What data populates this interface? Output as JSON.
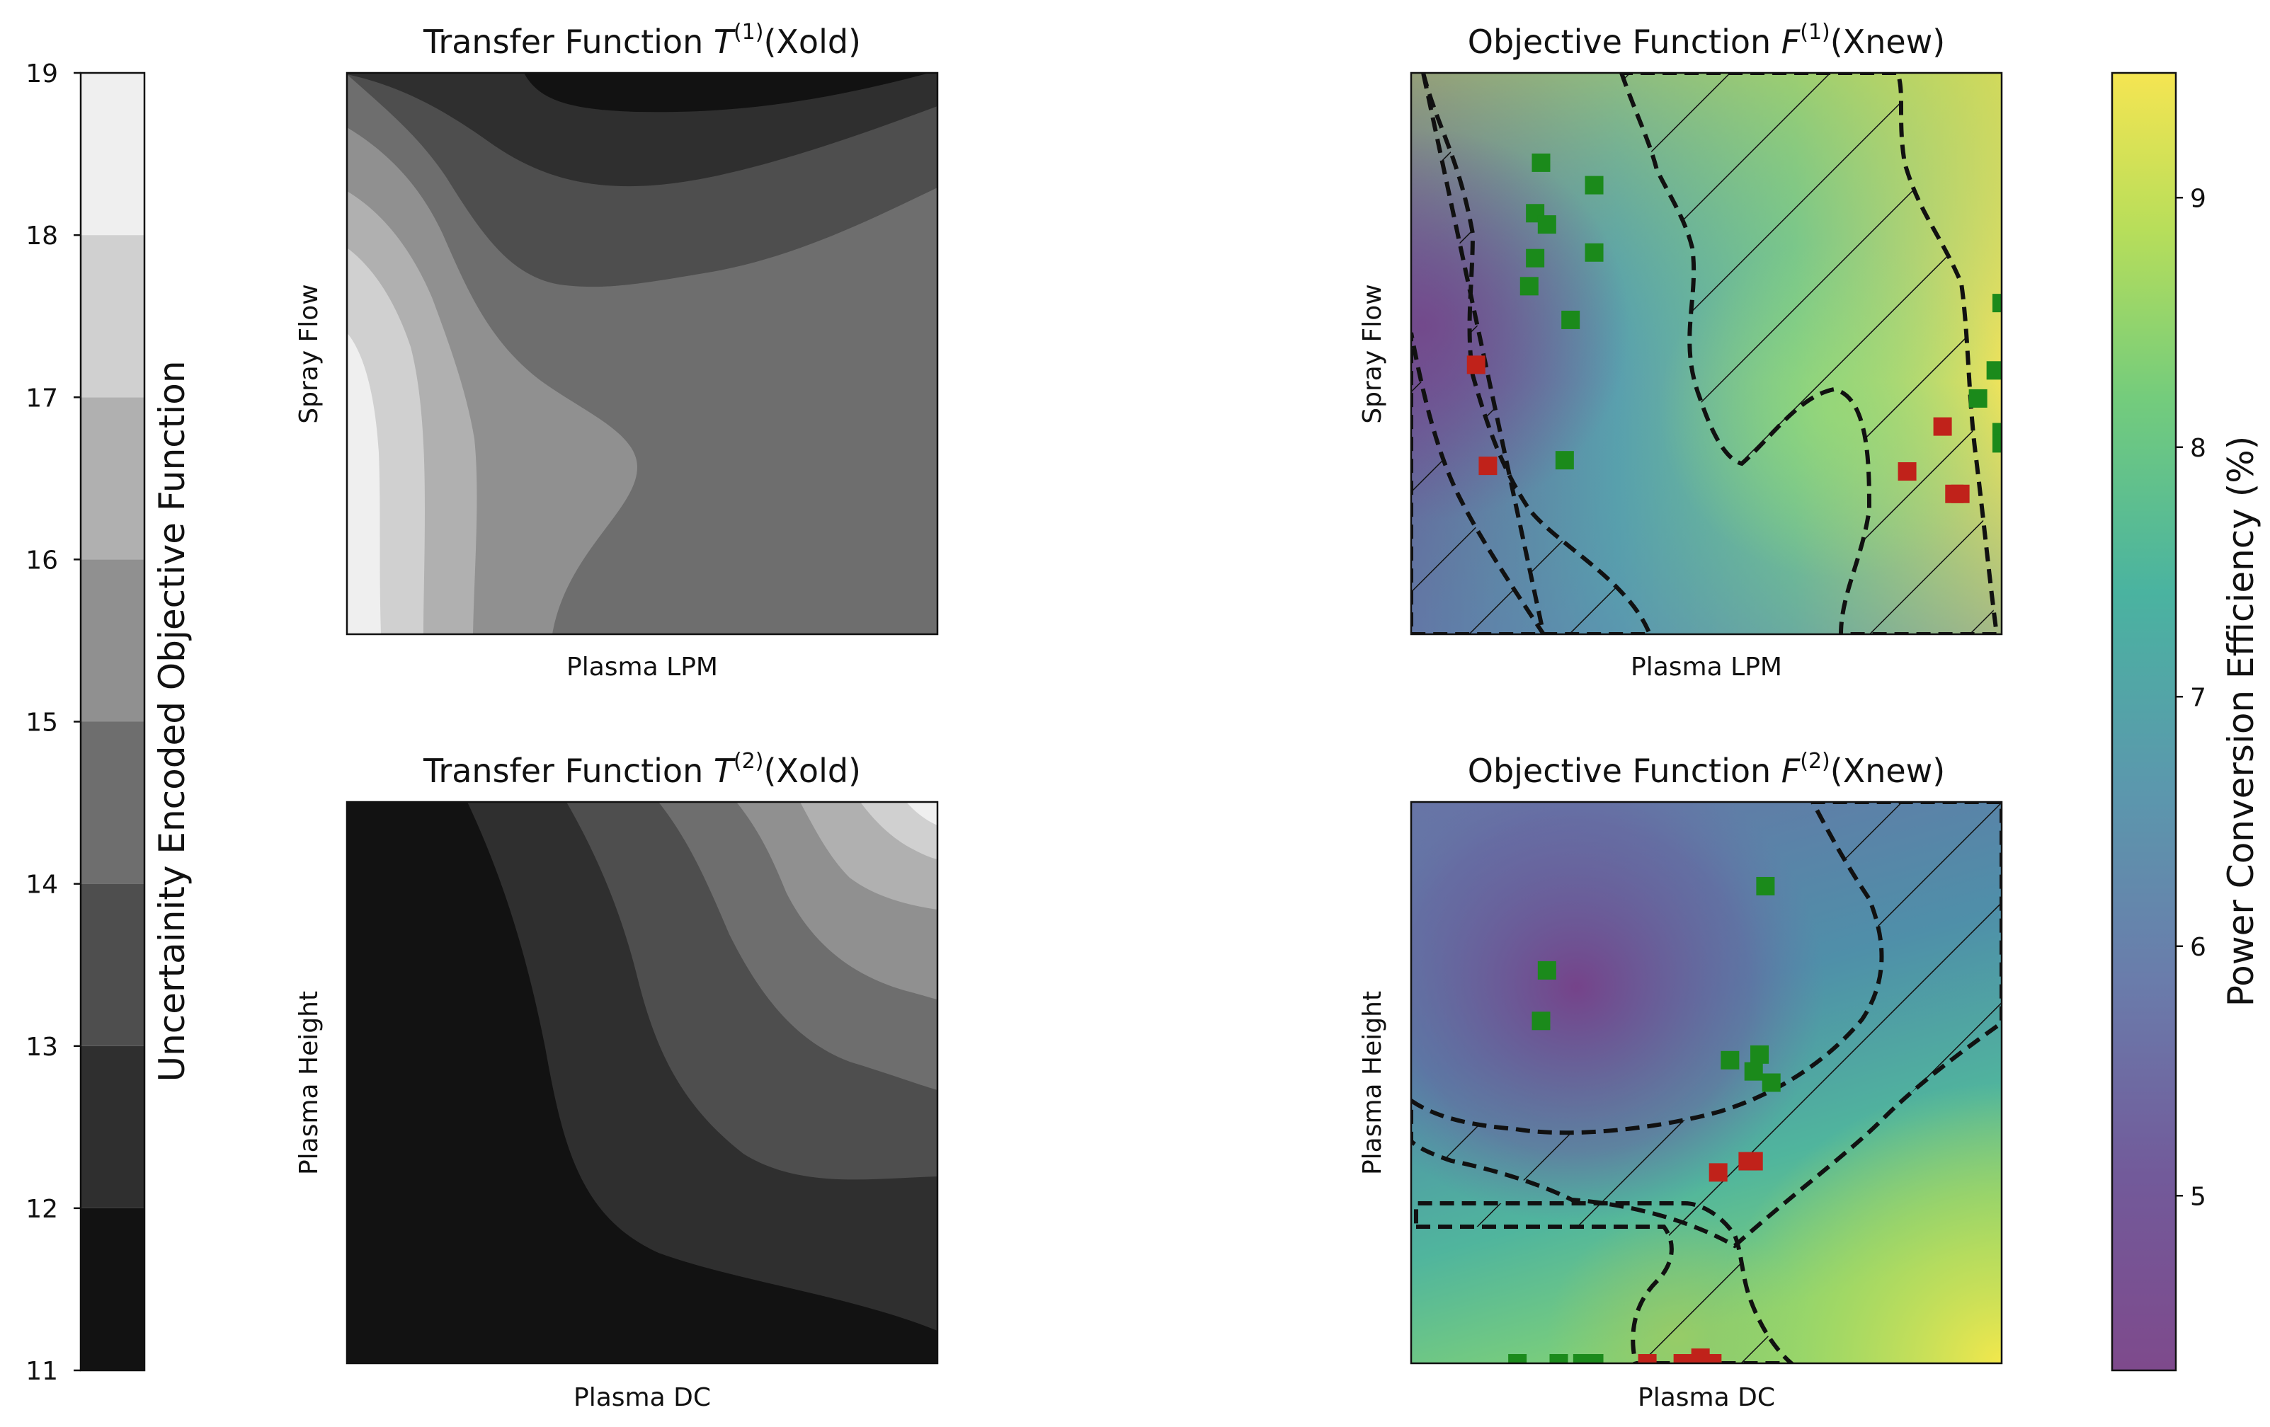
{
  "chart_data": [
    {
      "type": "colorbar",
      "label": "Uncertainity Encoded Objective Function",
      "ticks": [
        11,
        12,
        13,
        14,
        15,
        16,
        17,
        18,
        19
      ],
      "range": [
        11,
        19
      ],
      "levels": [
        {
          "from": 11,
          "to": 12,
          "color": "#121212"
        },
        {
          "from": 12,
          "to": 13,
          "color": "#2f2f2f"
        },
        {
          "from": 13,
          "to": 14,
          "color": "#4e4e4e"
        },
        {
          "from": 14,
          "to": 15,
          "color": "#6e6e6e"
        },
        {
          "from": 15,
          "to": 16,
          "color": "#909090"
        },
        {
          "from": 16,
          "to": 17,
          "color": "#b0b0b0"
        },
        {
          "from": 17,
          "to": 18,
          "color": "#d0d0d0"
        },
        {
          "from": 18,
          "to": 19,
          "color": "#efefef"
        }
      ]
    },
    {
      "type": "heatmap",
      "title_prefix": "Transfer Function ",
      "title_sym": "T",
      "title_sup": "(1)",
      "title_arg": "(Xold)",
      "xlabel": "Plasma LPM",
      "ylabel": "Spray Flow",
      "colormap": "gray-levels"
    },
    {
      "type": "heatmap",
      "title_prefix": "Transfer Function ",
      "title_sym": "T",
      "title_sup": "(2)",
      "title_arg": "(Xold)",
      "xlabel": "Plasma DC",
      "ylabel": "Plasma Height",
      "colormap": "gray-levels"
    },
    {
      "type": "heatmap",
      "title_prefix": "Objective Function ",
      "title_sym": "F",
      "title_sup": "(1)",
      "title_arg": "(Xnew)",
      "xlabel": "Plasma LPM",
      "ylabel": "Spray Flow",
      "colormap": "viridis",
      "points_green": [
        [
          0.22,
          0.84
        ],
        [
          0.21,
          0.75
        ],
        [
          0.23,
          0.73
        ],
        [
          0.21,
          0.67
        ],
        [
          0.2,
          0.62
        ],
        [
          0.27,
          0.56
        ],
        [
          0.31,
          0.8
        ],
        [
          0.31,
          0.68
        ],
        [
          0.26,
          0.31
        ],
        [
          1.0,
          0.59
        ],
        [
          0.99,
          0.47
        ],
        [
          0.96,
          0.42
        ],
        [
          1.0,
          0.36
        ],
        [
          1.0,
          0.34
        ]
      ],
      "points_red": [
        [
          0.11,
          0.48
        ],
        [
          0.13,
          0.3
        ],
        [
          0.9,
          0.37
        ],
        [
          0.84,
          0.29
        ],
        [
          0.92,
          0.25
        ],
        [
          0.93,
          0.25
        ]
      ]
    },
    {
      "type": "heatmap",
      "title_prefix": "Objective Function ",
      "title_sym": "F",
      "title_sup": "(2)",
      "title_arg": "(Xnew)",
      "xlabel": "Plasma DC",
      "ylabel": "Plasma Height",
      "colormap": "viridis",
      "points_green": [
        [
          0.6,
          0.85
        ],
        [
          0.23,
          0.7
        ],
        [
          0.22,
          0.61
        ],
        [
          0.54,
          0.54
        ],
        [
          0.59,
          0.55
        ],
        [
          0.58,
          0.52
        ],
        [
          0.61,
          0.5
        ],
        [
          0.18,
          0.0
        ],
        [
          0.25,
          0.0
        ],
        [
          0.29,
          0.0
        ],
        [
          0.31,
          0.0
        ]
      ],
      "points_red": [
        [
          0.52,
          0.34
        ],
        [
          0.57,
          0.36
        ],
        [
          0.58,
          0.36
        ],
        [
          0.4,
          0.0
        ],
        [
          0.46,
          0.0
        ],
        [
          0.49,
          0.01
        ],
        [
          0.51,
          0.0
        ]
      ]
    },
    {
      "type": "colorbar",
      "label": "Power Conversion Efficiency (%)",
      "ticks": [
        5,
        6,
        7,
        8,
        9
      ],
      "range": [
        4.3,
        9.5
      ],
      "colormap": "viridis"
    }
  ]
}
